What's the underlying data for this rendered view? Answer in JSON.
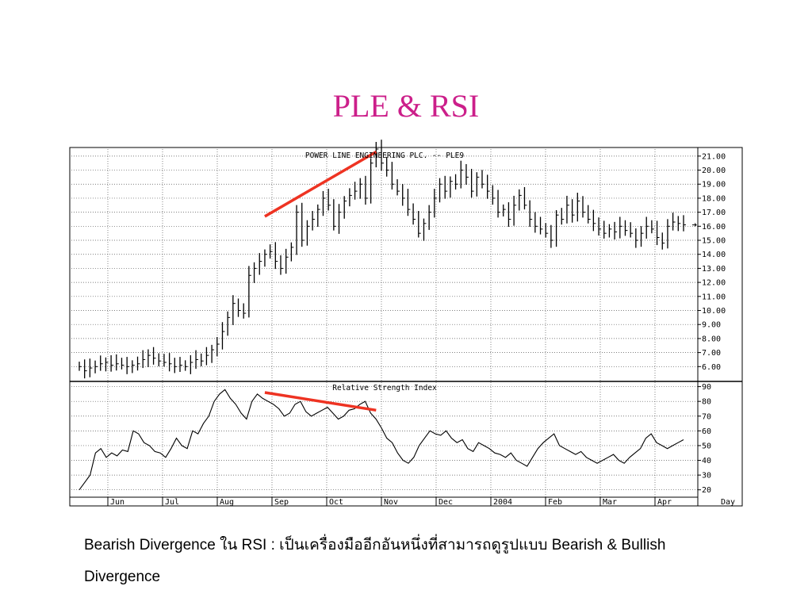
{
  "slide": {
    "title": "PLE & RSI",
    "title_color": "#cc1f8a",
    "caption": "Bearish Divergence ใน RSI : เป็นเครื่องมืออีกอันหนึ่งที่สามารถดูรูปแบบ Bearish & Bullish Divergence"
  },
  "chart_data": [
    {
      "type": "line",
      "title": "POWER LINE ENGINEERING PLC. -- PLE9",
      "ylim": [
        5.0,
        21.5
      ],
      "yticks": [
        "21.00",
        "20.00",
        "19.00",
        "18.00",
        "17.00",
        "16.00",
        "15.00",
        "14.00",
        "13.00",
        "12.00",
        "11.00",
        "10.00",
        "9.00",
        "8.00",
        "7.00",
        "6.00"
      ],
      "months": [
        "Jun",
        "Jul",
        "Aug",
        "Sep",
        "Oct",
        "Nov",
        "Dec",
        "2004",
        "Feb",
        "Mar",
        "Apr"
      ],
      "x_unit": "Day",
      "grid": true,
      "series": [
        {
          "values": [
            6.0,
            5.7,
            5.9,
            6.0,
            6.2,
            6.3,
            6.1,
            6.2,
            6.1,
            6.0,
            6.1,
            6.2,
            6.5,
            6.8,
            6.6,
            6.4,
            6.3,
            6.2,
            6.0,
            6.1,
            6.0,
            6.3,
            6.5,
            6.4,
            6.8,
            7.2,
            7.6,
            8.5,
            9.5,
            10.5,
            10.0,
            9.8,
            12.5,
            13.0,
            13.5,
            14.0,
            14.2,
            13.5,
            13.0,
            13.8,
            14.5,
            17.0,
            15.0,
            16.0,
            16.5,
            17.2,
            18.0,
            17.5,
            16.0,
            17.0,
            17.8,
            18.2,
            18.5,
            19.0,
            18.0,
            20.5,
            21.5,
            20.5,
            20.0,
            19.0,
            18.5,
            18.0,
            17.2,
            16.5,
            15.5,
            16.2,
            17.0,
            18.0,
            19.0,
            18.5,
            19.2,
            19.0,
            20.0,
            19.5,
            18.5,
            19.5,
            19.0,
            18.5,
            18.0,
            17.0,
            17.2,
            16.5,
            17.5,
            18.2,
            17.5,
            16.5,
            16.0,
            15.8,
            15.5,
            15.0,
            16.8,
            16.5,
            17.5,
            16.8,
            17.8,
            17.0,
            16.5,
            16.2,
            15.8,
            15.5,
            15.8,
            15.6,
            16.0,
            15.7,
            15.5,
            15.0,
            15.5,
            16.0,
            15.8,
            15.2,
            14.8,
            16.0,
            16.3,
            16.2,
            16.1
          ]
        }
      ],
      "annotation": {
        "type": "trend-line",
        "color": "#ee3322",
        "from": {
          "x": 35,
          "y": 16.7
        },
        "to": {
          "x": 56,
          "y": 21.3
        }
      }
    },
    {
      "type": "line",
      "title": "Relative Strength Index",
      "ylim": [
        15,
        93
      ],
      "yticks": [
        "90",
        "80",
        "70",
        "60",
        "50",
        "40",
        "30",
        "20"
      ],
      "months": [
        "Jun",
        "Jul",
        "Aug",
        "Sep",
        "Oct",
        "Nov",
        "Dec",
        "2004",
        "Feb",
        "Mar",
        "Apr"
      ],
      "x_unit": "Day",
      "grid": true,
      "series": [
        {
          "values": [
            20,
            25,
            30,
            45,
            48,
            42,
            45,
            43,
            47,
            46,
            60,
            58,
            52,
            50,
            46,
            45,
            42,
            48,
            55,
            50,
            48,
            60,
            58,
            65,
            70,
            80,
            85,
            88,
            82,
            78,
            72,
            68,
            80,
            85,
            82,
            80,
            78,
            75,
            70,
            72,
            78,
            80,
            73,
            70,
            72,
            74,
            76,
            72,
            68,
            70,
            74,
            75,
            78,
            80,
            72,
            68,
            62,
            55,
            52,
            45,
            40,
            38,
            42,
            50,
            55,
            60,
            58,
            57,
            60,
            55,
            52,
            54,
            48,
            46,
            52,
            50,
            48,
            45,
            44,
            42,
            45,
            40,
            38,
            36,
            42,
            48,
            52,
            55,
            58,
            50,
            48,
            46,
            44,
            46,
            42,
            40,
            38,
            40,
            42,
            44,
            40,
            38,
            42,
            45,
            48,
            55,
            58,
            52,
            50,
            48,
            50,
            52,
            54
          ]
        }
      ],
      "annotation": {
        "type": "trend-line",
        "color": "#ee3322",
        "from": {
          "x": 35,
          "y": 86
        },
        "to": {
          "x": 56,
          "y": 74
        }
      }
    }
  ]
}
